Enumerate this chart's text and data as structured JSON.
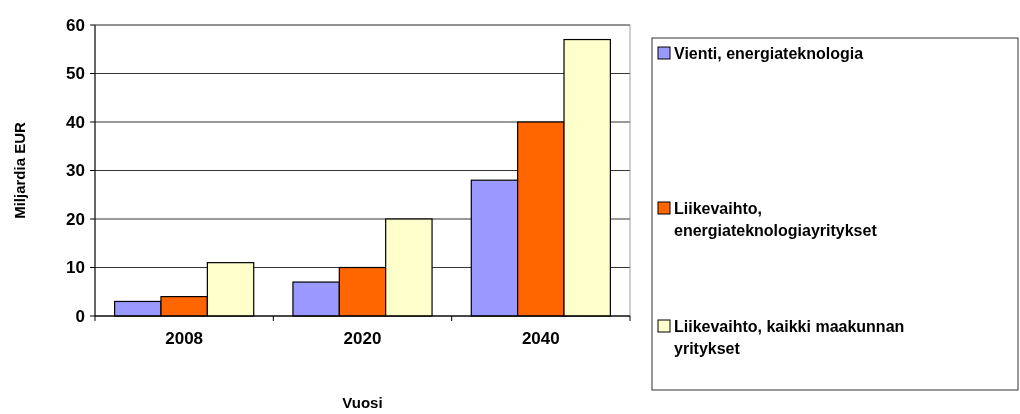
{
  "chart_data": {
    "type": "bar",
    "xlabel": "Vuosi",
    "ylabel": "Miljardia EUR",
    "categories": [
      "2008",
      "2020",
      "2040"
    ],
    "series": [
      {
        "name": "Vienti, energiateknologia",
        "color": "#9999ff",
        "values": [
          3,
          7,
          28
        ]
      },
      {
        "name": "Liikevaihto, energiateknologiayritykset",
        "color": "#ff6600",
        "values": [
          4,
          10,
          40
        ]
      },
      {
        "name": "Liikevaihto, kaikki maakunnan yritykset",
        "color": "#ffffcc",
        "values": [
          11,
          20,
          57
        ]
      }
    ],
    "ylim": [
      0,
      60
    ],
    "yticks": [
      0,
      10,
      20,
      30,
      40,
      50,
      60
    ],
    "grid": "y",
    "legend": "right"
  }
}
